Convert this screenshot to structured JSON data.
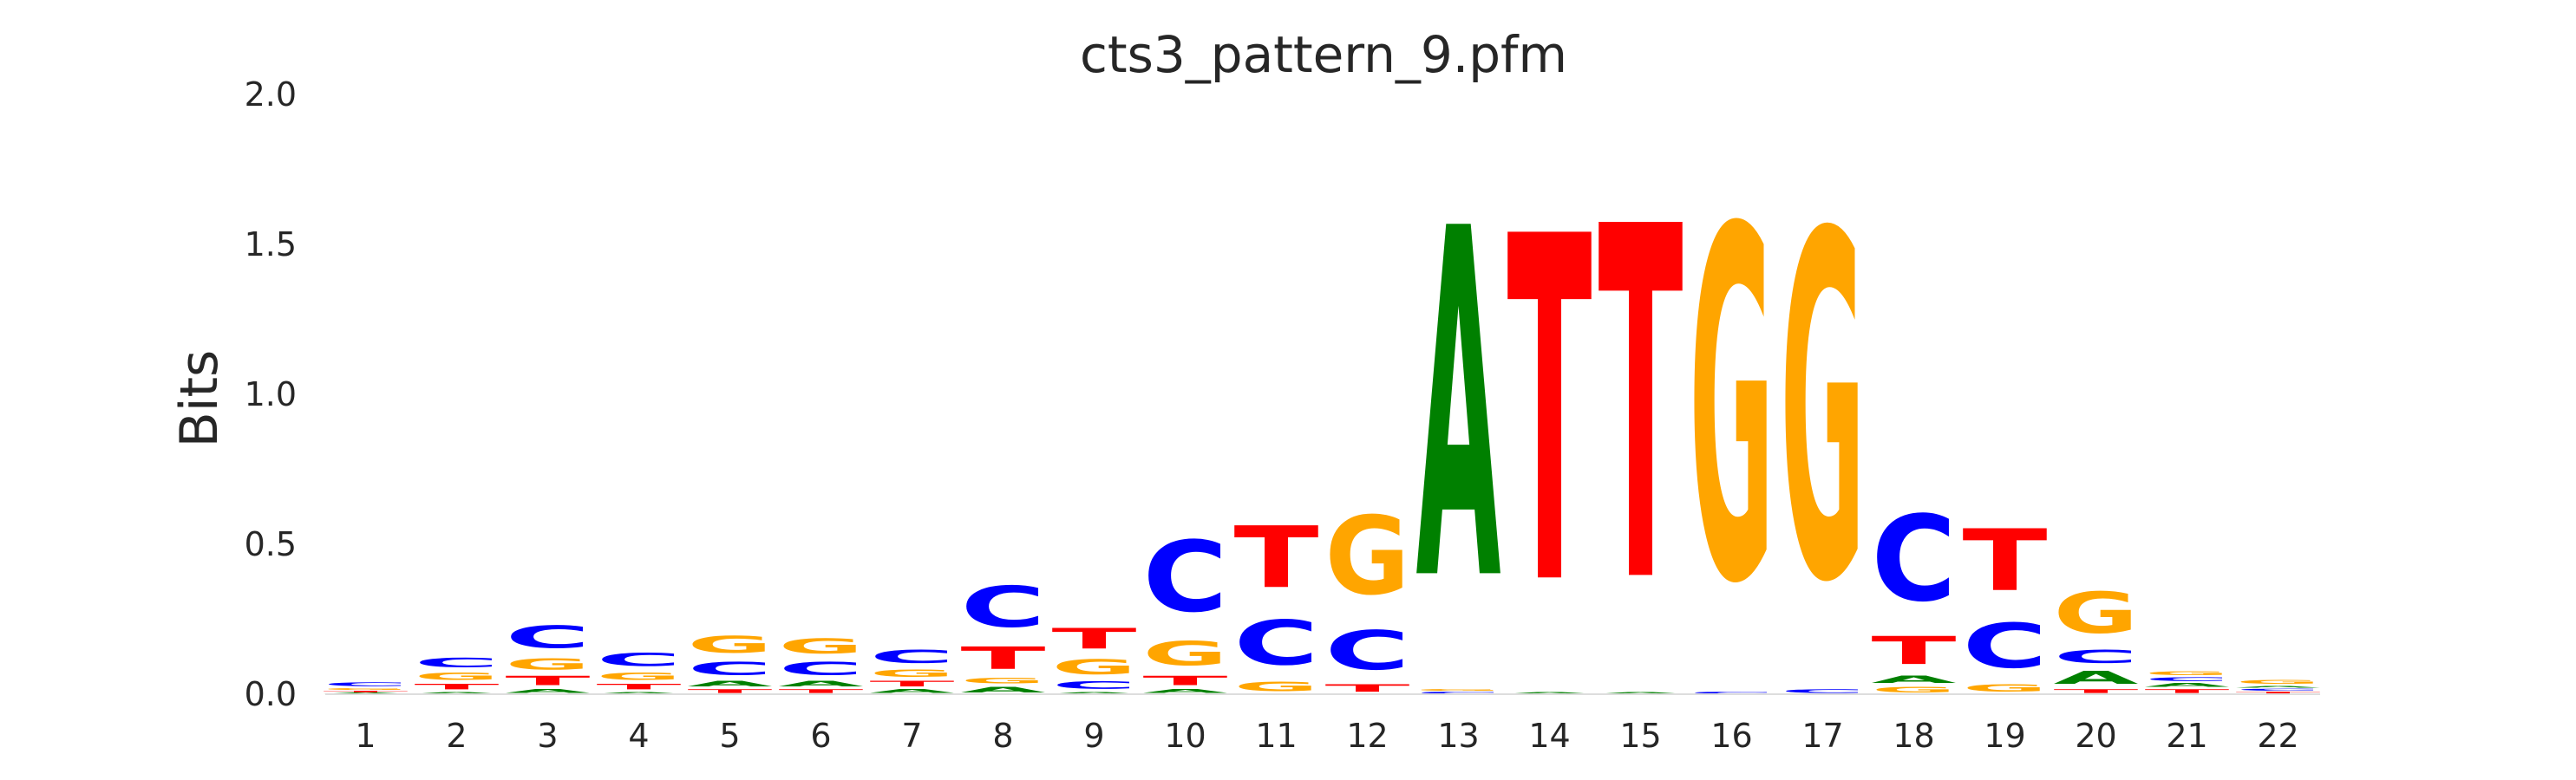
{
  "chart_data": {
    "type": "sequence-logo",
    "title": "cts3_pattern_9.pfm",
    "xlabel": "",
    "ylabel": "Bits",
    "ylim": [
      0,
      2.0
    ],
    "yticks": [
      "0.0",
      "0.5",
      "1.0",
      "1.5",
      "2.0"
    ],
    "positions": [
      "1",
      "2",
      "3",
      "4",
      "5",
      "6",
      "7",
      "8",
      "9",
      "10",
      "11",
      "12",
      "13",
      "14",
      "15",
      "16",
      "17",
      "18",
      "19",
      "20",
      "21",
      "22"
    ],
    "colors": {
      "A": "#008000",
      "C": "#0000ff",
      "G": "#ffa500",
      "T": "#ff0000"
    },
    "grid": false,
    "stacks": [
      [
        {
          "base": "A",
          "h": 0.005
        },
        {
          "base": "T",
          "h": 0.008
        },
        {
          "base": "G",
          "h": 0.01
        },
        {
          "base": "C",
          "h": 0.02
        }
      ],
      [
        {
          "base": "A",
          "h": 0.01
        },
        {
          "base": "T",
          "h": 0.03
        },
        {
          "base": "G",
          "h": 0.04
        },
        {
          "base": "C",
          "h": 0.05
        }
      ],
      [
        {
          "base": "A",
          "h": 0.02
        },
        {
          "base": "T",
          "h": 0.05
        },
        {
          "base": "G",
          "h": 0.06
        },
        {
          "base": "C",
          "h": 0.12
        }
      ],
      [
        {
          "base": "A",
          "h": 0.01
        },
        {
          "base": "T",
          "h": 0.03
        },
        {
          "base": "G",
          "h": 0.04
        },
        {
          "base": "C",
          "h": 0.07
        }
      ],
      [
        {
          "base": "T",
          "h": 0.02
        },
        {
          "base": "A",
          "h": 0.03
        },
        {
          "base": "C",
          "h": 0.07
        },
        {
          "base": "G",
          "h": 0.09
        }
      ],
      [
        {
          "base": "T",
          "h": 0.02
        },
        {
          "base": "A",
          "h": 0.03
        },
        {
          "base": "C",
          "h": 0.07
        },
        {
          "base": "G",
          "h": 0.08
        }
      ],
      [
        {
          "base": "A",
          "h": 0.02
        },
        {
          "base": "T",
          "h": 0.03
        },
        {
          "base": "G",
          "h": 0.04
        },
        {
          "base": "C",
          "h": 0.07
        }
      ],
      [
        {
          "base": "A",
          "h": 0.03
        },
        {
          "base": "G",
          "h": 0.03
        },
        {
          "base": "T",
          "h": 0.12
        },
        {
          "base": "C",
          "h": 0.22
        }
      ],
      [
        {
          "base": "A",
          "h": 0.01
        },
        {
          "base": "C",
          "h": 0.04
        },
        {
          "base": "G",
          "h": 0.08
        },
        {
          "base": "T",
          "h": 0.11
        }
      ],
      [
        {
          "base": "A",
          "h": 0.02
        },
        {
          "base": "T",
          "h": 0.05
        },
        {
          "base": "G",
          "h": 0.13
        },
        {
          "base": "C",
          "h": 0.38
        }
      ],
      [
        {
          "base": "G",
          "h": 0.05
        },
        {
          "base": "C",
          "h": 0.24
        },
        {
          "base": "T",
          "h": 0.33
        }
      ],
      [
        {
          "base": "T",
          "h": 0.04
        },
        {
          "base": "C",
          "h": 0.21
        },
        {
          "base": "G",
          "h": 0.42
        }
      ],
      [
        {
          "base": "C",
          "h": 0.01
        },
        {
          "base": "G",
          "h": 0.01
        },
        {
          "base": "A",
          "h": 1.87
        }
      ],
      [
        {
          "base": "A",
          "h": 0.01
        },
        {
          "base": "T",
          "h": 1.85
        }
      ],
      [
        {
          "base": "A",
          "h": 0.01
        },
        {
          "base": "T",
          "h": 1.89
        }
      ],
      [
        {
          "base": "C",
          "h": 0.01
        },
        {
          "base": "G",
          "h": 1.88
        }
      ],
      [
        {
          "base": "C",
          "h": 0.02
        },
        {
          "base": "G",
          "h": 1.85
        }
      ],
      [
        {
          "base": "G",
          "h": 0.03
        },
        {
          "base": "A",
          "h": 0.04
        },
        {
          "base": "T",
          "h": 0.15
        },
        {
          "base": "C",
          "h": 0.46
        }
      ],
      [
        {
          "base": "G",
          "h": 0.04
        },
        {
          "base": "C",
          "h": 0.24
        },
        {
          "base": "T",
          "h": 0.33
        }
      ],
      [
        {
          "base": "T",
          "h": 0.02
        },
        {
          "base": "A",
          "h": 0.07
        },
        {
          "base": "C",
          "h": 0.07
        },
        {
          "base": "G",
          "h": 0.22
        }
      ],
      [
        {
          "base": "T",
          "h": 0.02
        },
        {
          "base": "A",
          "h": 0.02
        },
        {
          "base": "C",
          "h": 0.02
        },
        {
          "base": "G",
          "h": 0.02
        }
      ],
      [
        {
          "base": "T",
          "h": 0.01
        },
        {
          "base": "C",
          "h": 0.01
        },
        {
          "base": "A",
          "h": 0.01
        },
        {
          "base": "G",
          "h": 0.02
        }
      ]
    ]
  }
}
